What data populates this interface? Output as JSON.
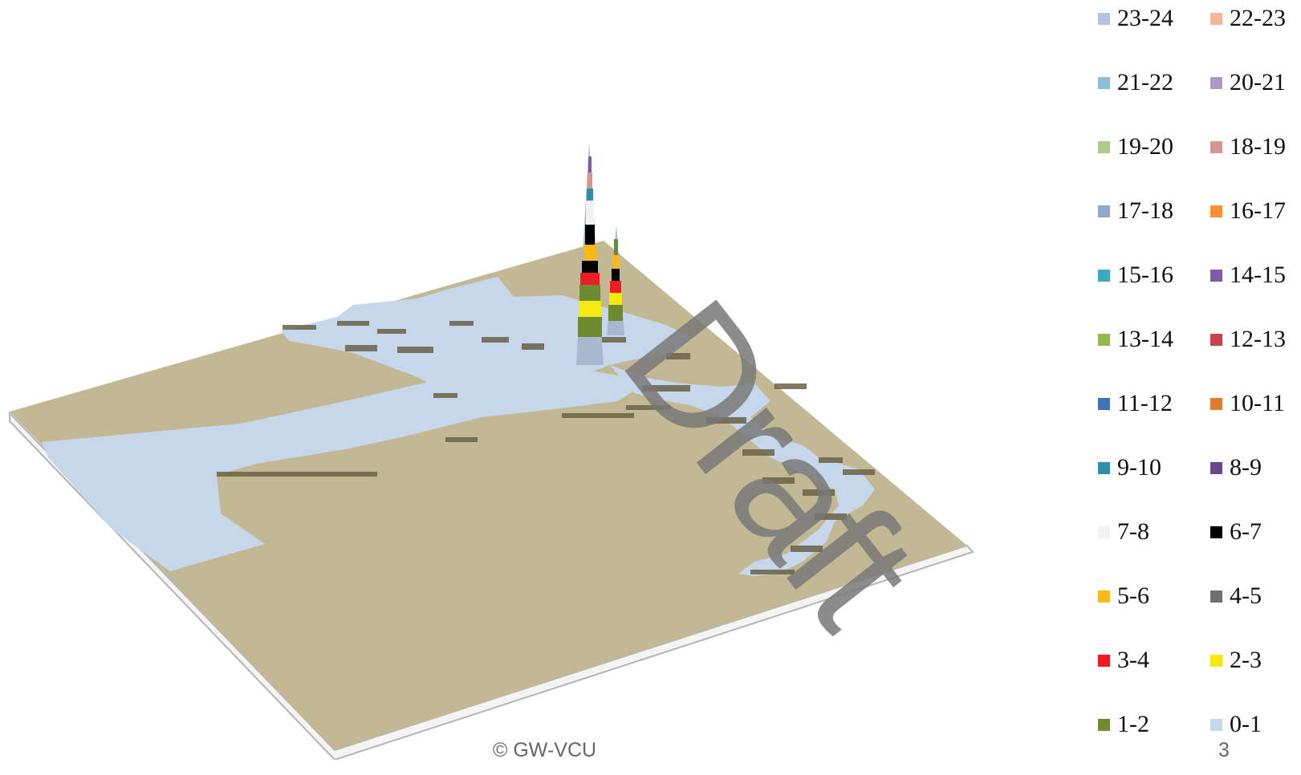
{
  "chart_data": {
    "type": "3d-surface-map",
    "base_color": "#c2b894",
    "water_color": "#c7d7eb",
    "legend_title": "",
    "legend": [
      {
        "label": "23-24",
        "color": "#b4c3e0"
      },
      {
        "label": "22-23",
        "color": "#f4b898"
      },
      {
        "label": "21-22",
        "color": "#8fbfd8"
      },
      {
        "label": "20-21",
        "color": "#a99bc4"
      },
      {
        "label": "19-20",
        "color": "#aecb8c"
      },
      {
        "label": "18-19",
        "color": "#d59493"
      },
      {
        "label": "17-18",
        "color": "#92a6cf"
      },
      {
        "label": "16-17",
        "color": "#f79134"
      },
      {
        "label": "15-16",
        "color": "#3ea9c3"
      },
      {
        "label": "14-15",
        "color": "#7d5ba6"
      },
      {
        "label": "13-14",
        "color": "#94b84e"
      },
      {
        "label": "12-13",
        "color": "#c8434b"
      },
      {
        "label": "11-12",
        "color": "#3f74b8"
      },
      {
        "label": "10-11",
        "color": "#e07d2d"
      },
      {
        "label": "9-10",
        "color": "#2e8fa5"
      },
      {
        "label": "8-9",
        "color": "#67488f"
      },
      {
        "label": "7-8",
        "color": "#f2f2f2"
      },
      {
        "label": "6-7",
        "color": "#000000"
      },
      {
        "label": "5-6",
        "color": "#fbb917"
      },
      {
        "label": "4-5",
        "color": "#707070"
      },
      {
        "label": "3-4",
        "color": "#ee1c24"
      },
      {
        "label": "2-3",
        "color": "#f4e913"
      },
      {
        "label": "1-2",
        "color": "#6e8b32"
      },
      {
        "label": "0-1",
        "color": "#c7d7eb"
      }
    ],
    "peaks": [
      {
        "id": "main",
        "max_class": "23-24"
      },
      {
        "id": "secondary",
        "max_class": "13-14"
      }
    ]
  },
  "watermark": "Draft",
  "footer": {
    "copyright": "© GW-VCU",
    "page_number": "3"
  }
}
